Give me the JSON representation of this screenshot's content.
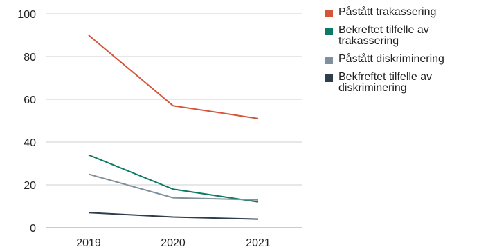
{
  "chart_data": {
    "type": "line",
    "categories": [
      "2019",
      "2020",
      "2021"
    ],
    "ylim": [
      0,
      100
    ],
    "yticks": [
      0,
      20,
      40,
      60,
      80,
      100
    ],
    "grid": true,
    "legend_position": "right",
    "series": [
      {
        "name": "Påstått trakassering",
        "color": "#d4553a",
        "values": [
          90,
          57,
          51
        ]
      },
      {
        "name": "Bekreftet tilfelle av trakassering",
        "color": "#0d7a63",
        "values": [
          34,
          18,
          12
        ]
      },
      {
        "name": "Påstått diskriminering",
        "color": "#7f919c",
        "values": [
          25,
          14,
          13
        ]
      },
      {
        "name": "Bekfreftet tilfelle av diskriminering",
        "color": "#2f3e4d",
        "values": [
          7,
          5,
          4
        ]
      }
    ]
  }
}
